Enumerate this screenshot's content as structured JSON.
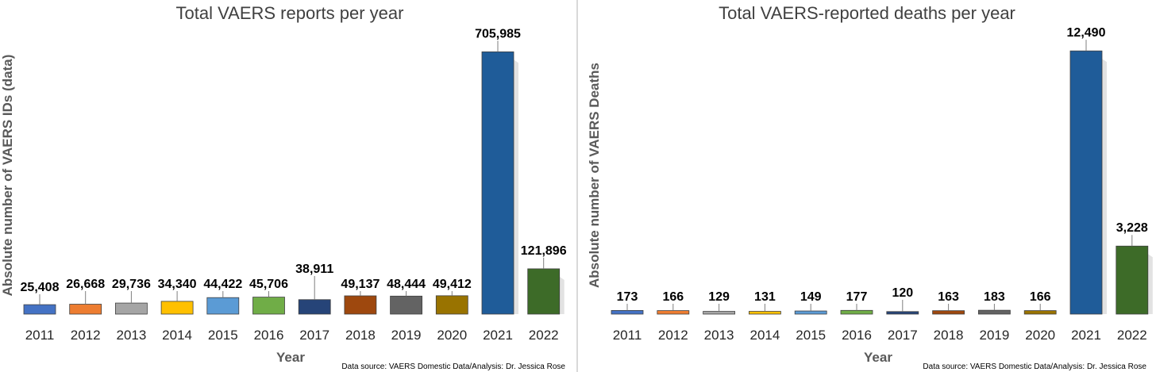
{
  "chart_data": [
    {
      "type": "bar",
      "title": "Total VAERS reports per year",
      "xlabel": "Year",
      "ylabel": "Absolute number of VAERS IDs (data)",
      "categories": [
        "2011",
        "2012",
        "2013",
        "2014",
        "2015",
        "2016",
        "2017",
        "2018",
        "2019",
        "2020",
        "2021",
        "2022"
      ],
      "values": [
        25408,
        26668,
        29736,
        34340,
        44422,
        45706,
        38911,
        49137,
        48444,
        49412,
        705985,
        121896
      ],
      "value_labels": [
        "25,408",
        "26,668",
        "29,736",
        "34,340",
        "44,422",
        "45,706",
        "38,911",
        "49,137",
        "48,444",
        "49,412",
        "705,985",
        "121,896"
      ],
      "ylim": [
        0,
        760000
      ],
      "grid": false,
      "legend": "none",
      "colors": [
        "#4472c4",
        "#ed7d31",
        "#a5a5a5",
        "#ffc000",
        "#5b9bd5",
        "#70ad47",
        "#264478",
        "#9e480e",
        "#636363",
        "#997300",
        "#1f5c99",
        "#3d6b28"
      ],
      "source": "Data source: VAERS Domestic Data/Analysis: Dr. Jessica Rose"
    },
    {
      "type": "bar",
      "title": "Total VAERS-reported deaths per year",
      "xlabel": "Year",
      "ylabel": "Absolute number of VAERS Deaths",
      "categories": [
        "2011",
        "2012",
        "2013",
        "2014",
        "2015",
        "2016",
        "2017",
        "2018",
        "2019",
        "2020",
        "2021",
        "2022"
      ],
      "values": [
        173,
        166,
        129,
        131,
        149,
        177,
        120,
        163,
        183,
        166,
        12490,
        3228
      ],
      "value_labels": [
        "173",
        "166",
        "129",
        "131",
        "149",
        "177",
        "120",
        "163",
        "183",
        "166",
        "12,490",
        "3,228"
      ],
      "ylim": [
        0,
        13400
      ],
      "grid": false,
      "legend": "none",
      "colors": [
        "#4472c4",
        "#ed7d31",
        "#a5a5a5",
        "#ffc000",
        "#5b9bd5",
        "#70ad47",
        "#264478",
        "#9e480e",
        "#636363",
        "#997300",
        "#1f5c99",
        "#3d6b28"
      ],
      "source": "Data source: VAERS Domestic Data/Analysis: Dr. Jessica Rose"
    }
  ]
}
